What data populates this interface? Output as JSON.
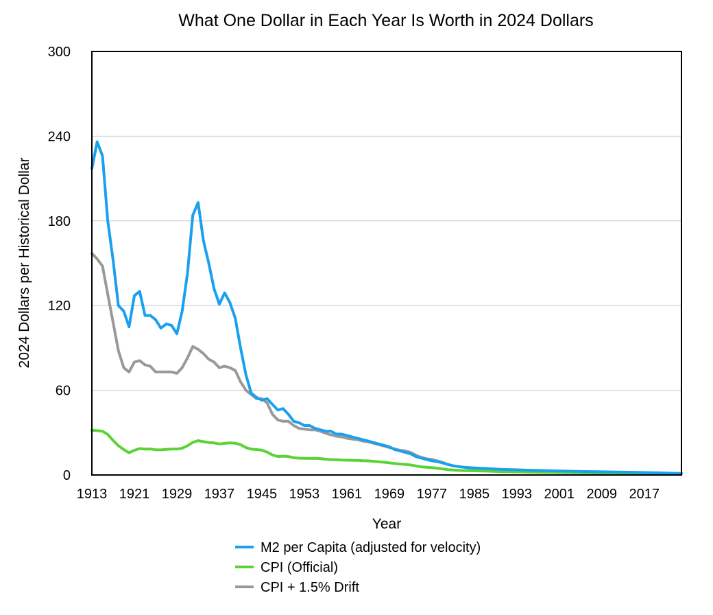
{
  "chart_data": {
    "type": "line",
    "title": "What One Dollar in Each Year Is Worth in 2024 Dollars",
    "xlabel": "Year",
    "ylabel": "2024 Dollars per Historical Dollar",
    "xlim": [
      1913,
      2024
    ],
    "ylim": [
      0,
      300
    ],
    "x_ticks": [
      1913,
      1921,
      1929,
      1937,
      1945,
      1953,
      1961,
      1969,
      1977,
      1985,
      1993,
      2001,
      2009,
      2017
    ],
    "y_ticks": [
      0,
      60,
      120,
      180,
      240,
      300
    ],
    "grid": "horizontal",
    "legend_position": "bottom",
    "series": [
      {
        "name": "M2 per Capita (adjusted for velocity)",
        "color": "#1aa0f0",
        "points": [
          [
            1913,
            217
          ],
          [
            1914,
            236
          ],
          [
            1915,
            226
          ],
          [
            1916,
            180
          ],
          [
            1917,
            152
          ],
          [
            1918,
            120
          ],
          [
            1919,
            116
          ],
          [
            1920,
            105
          ],
          [
            1921,
            127
          ],
          [
            1922,
            130
          ],
          [
            1923,
            113
          ],
          [
            1924,
            113
          ],
          [
            1925,
            110
          ],
          [
            1926,
            104
          ],
          [
            1927,
            107
          ],
          [
            1928,
            106
          ],
          [
            1929,
            100
          ],
          [
            1930,
            116
          ],
          [
            1931,
            143
          ],
          [
            1932,
            184
          ],
          [
            1933,
            193
          ],
          [
            1934,
            166
          ],
          [
            1935,
            150
          ],
          [
            1936,
            132
          ],
          [
            1937,
            121
          ],
          [
            1938,
            129
          ],
          [
            1939,
            122
          ],
          [
            1940,
            111
          ],
          [
            1941,
            90
          ],
          [
            1942,
            71
          ],
          [
            1943,
            58
          ],
          [
            1944,
            55
          ],
          [
            1945,
            53
          ],
          [
            1946,
            54
          ],
          [
            1947,
            50
          ],
          [
            1948,
            46
          ],
          [
            1949,
            47
          ],
          [
            1950,
            43
          ],
          [
            1951,
            38
          ],
          [
            1952,
            37
          ],
          [
            1953,
            35
          ],
          [
            1954,
            35
          ],
          [
            1955,
            33
          ],
          [
            1956,
            32
          ],
          [
            1957,
            31
          ],
          [
            1958,
            31
          ],
          [
            1959,
            29
          ],
          [
            1960,
            29
          ],
          [
            1961,
            28
          ],
          [
            1962,
            27
          ],
          [
            1963,
            26
          ],
          [
            1964,
            25
          ],
          [
            1965,
            24
          ],
          [
            1966,
            23
          ],
          [
            1967,
            22
          ],
          [
            1968,
            21
          ],
          [
            1969,
            20
          ],
          [
            1970,
            18
          ],
          [
            1971,
            17
          ],
          [
            1972,
            16
          ],
          [
            1973,
            15
          ],
          [
            1974,
            13
          ],
          [
            1975,
            12
          ],
          [
            1976,
            11
          ],
          [
            1977,
            10
          ],
          [
            1978,
            9.5
          ],
          [
            1979,
            8.5
          ],
          [
            1980,
            7.5
          ],
          [
            1981,
            6.5
          ],
          [
            1982,
            6
          ],
          [
            1983,
            5.5
          ],
          [
            1984,
            5.2
          ],
          [
            1985,
            5
          ],
          [
            1987,
            4.6
          ],
          [
            1990,
            4
          ],
          [
            1995,
            3.4
          ],
          [
            2000,
            2.9
          ],
          [
            2005,
            2.5
          ],
          [
            2010,
            2.2
          ],
          [
            2015,
            1.9
          ],
          [
            2020,
            1.5
          ],
          [
            2024,
            1
          ]
        ]
      },
      {
        "name": "CPI (Official)",
        "color": "#5bd336",
        "points": [
          [
            1913,
            31.7
          ],
          [
            1914,
            31.4
          ],
          [
            1915,
            31.0
          ],
          [
            1916,
            28.7
          ],
          [
            1917,
            24.5
          ],
          [
            1918,
            20.7
          ],
          [
            1919,
            18.1
          ],
          [
            1920,
            15.7
          ],
          [
            1921,
            17.5
          ],
          [
            1922,
            18.7
          ],
          [
            1923,
            18.4
          ],
          [
            1924,
            18.4
          ],
          [
            1925,
            17.9
          ],
          [
            1926,
            17.8
          ],
          [
            1927,
            18.1
          ],
          [
            1928,
            18.4
          ],
          [
            1929,
            18.4
          ],
          [
            1930,
            18.9
          ],
          [
            1931,
            20.7
          ],
          [
            1932,
            23.1
          ],
          [
            1933,
            24.3
          ],
          [
            1934,
            23.6
          ],
          [
            1935,
            23.0
          ],
          [
            1936,
            22.7
          ],
          [
            1937,
            22.0
          ],
          [
            1938,
            22.4
          ],
          [
            1939,
            22.7
          ],
          [
            1940,
            22.5
          ],
          [
            1941,
            21.5
          ],
          [
            1942,
            19.4
          ],
          [
            1943,
            18.3
          ],
          [
            1944,
            18.0
          ],
          [
            1945,
            17.6
          ],
          [
            1946,
            16.2
          ],
          [
            1947,
            14.2
          ],
          [
            1948,
            13.1
          ],
          [
            1949,
            13.3
          ],
          [
            1950,
            13.1
          ],
          [
            1951,
            12.2
          ],
          [
            1952,
            11.9
          ],
          [
            1953,
            11.8
          ],
          [
            1954,
            11.7
          ],
          [
            1955,
            11.8
          ],
          [
            1956,
            11.6
          ],
          [
            1957,
            11.2
          ],
          [
            1958,
            10.9
          ],
          [
            1959,
            10.8
          ],
          [
            1960,
            10.6
          ],
          [
            1961,
            10.5
          ],
          [
            1962,
            10.4
          ],
          [
            1963,
            10.3
          ],
          [
            1964,
            10.1
          ],
          [
            1965,
            10.0
          ],
          [
            1966,
            9.7
          ],
          [
            1967,
            9.4
          ],
          [
            1968,
            9.0
          ],
          [
            1969,
            8.6
          ],
          [
            1970,
            8.1
          ],
          [
            1971,
            7.8
          ],
          [
            1972,
            7.5
          ],
          [
            1973,
            7.1
          ],
          [
            1974,
            6.4
          ],
          [
            1975,
            5.8
          ],
          [
            1976,
            5.5
          ],
          [
            1977,
            5.2
          ],
          [
            1978,
            4.8
          ],
          [
            1979,
            4.3
          ],
          [
            1980,
            3.8
          ],
          [
            1981,
            3.5
          ],
          [
            1982,
            3.3
          ],
          [
            1983,
            3.1
          ],
          [
            1984,
            3.0
          ],
          [
            1985,
            2.9
          ],
          [
            1987,
            2.8
          ],
          [
            1990,
            2.4
          ],
          [
            1995,
            2.1
          ],
          [
            2000,
            1.8
          ],
          [
            2005,
            1.6
          ],
          [
            2010,
            1.4
          ],
          [
            2015,
            1.3
          ],
          [
            2020,
            1.2
          ],
          [
            2024,
            1.0
          ]
        ]
      },
      {
        "name": "CPI + 1.5% Drift",
        "color": "#999999",
        "points": [
          [
            1913,
            157
          ],
          [
            1914,
            153
          ],
          [
            1915,
            148
          ],
          [
            1916,
            128
          ],
          [
            1917,
            108
          ],
          [
            1918,
            88
          ],
          [
            1919,
            76
          ],
          [
            1920,
            73
          ],
          [
            1921,
            80
          ],
          [
            1922,
            81
          ],
          [
            1923,
            78
          ],
          [
            1924,
            77
          ],
          [
            1925,
            73
          ],
          [
            1926,
            73
          ],
          [
            1927,
            73
          ],
          [
            1928,
            73
          ],
          [
            1929,
            72
          ],
          [
            1930,
            76
          ],
          [
            1931,
            83
          ],
          [
            1932,
            91
          ],
          [
            1933,
            89
          ],
          [
            1934,
            86
          ],
          [
            1935,
            82
          ],
          [
            1936,
            80
          ],
          [
            1937,
            76
          ],
          [
            1938,
            77
          ],
          [
            1939,
            76
          ],
          [
            1940,
            74
          ],
          [
            1941,
            66
          ],
          [
            1942,
            60
          ],
          [
            1943,
            57
          ],
          [
            1944,
            54
          ],
          [
            1945,
            54
          ],
          [
            1946,
            51
          ],
          [
            1947,
            43
          ],
          [
            1948,
            39
          ],
          [
            1949,
            38
          ],
          [
            1950,
            38
          ],
          [
            1951,
            35
          ],
          [
            1952,
            33
          ],
          [
            1953,
            32.5
          ],
          [
            1954,
            32
          ],
          [
            1955,
            32
          ],
          [
            1956,
            31
          ],
          [
            1957,
            29.5
          ],
          [
            1958,
            28.5
          ],
          [
            1959,
            27.5
          ],
          [
            1960,
            27
          ],
          [
            1961,
            26
          ],
          [
            1962,
            25.5
          ],
          [
            1963,
            25
          ],
          [
            1964,
            24
          ],
          [
            1965,
            23.5
          ],
          [
            1966,
            22.5
          ],
          [
            1967,
            21.5
          ],
          [
            1968,
            20.5
          ],
          [
            1969,
            19.5
          ],
          [
            1970,
            18.5
          ],
          [
            1971,
            17.5
          ],
          [
            1972,
            17
          ],
          [
            1973,
            16
          ],
          [
            1974,
            14
          ],
          [
            1975,
            12.5
          ],
          [
            1976,
            11.5
          ],
          [
            1977,
            11
          ],
          [
            1978,
            10
          ],
          [
            1979,
            9
          ],
          [
            1980,
            7.5
          ],
          [
            1981,
            6.5
          ],
          [
            1982,
            6
          ],
          [
            1983,
            5.5
          ],
          [
            1984,
            5
          ],
          [
            1985,
            4.7
          ],
          [
            1987,
            4.3
          ],
          [
            1990,
            3.7
          ],
          [
            1995,
            3.1
          ],
          [
            2000,
            2.6
          ],
          [
            2005,
            2.2
          ],
          [
            2010,
            1.9
          ],
          [
            2015,
            1.6
          ],
          [
            2020,
            1.3
          ],
          [
            2024,
            1.0
          ]
        ]
      }
    ]
  }
}
